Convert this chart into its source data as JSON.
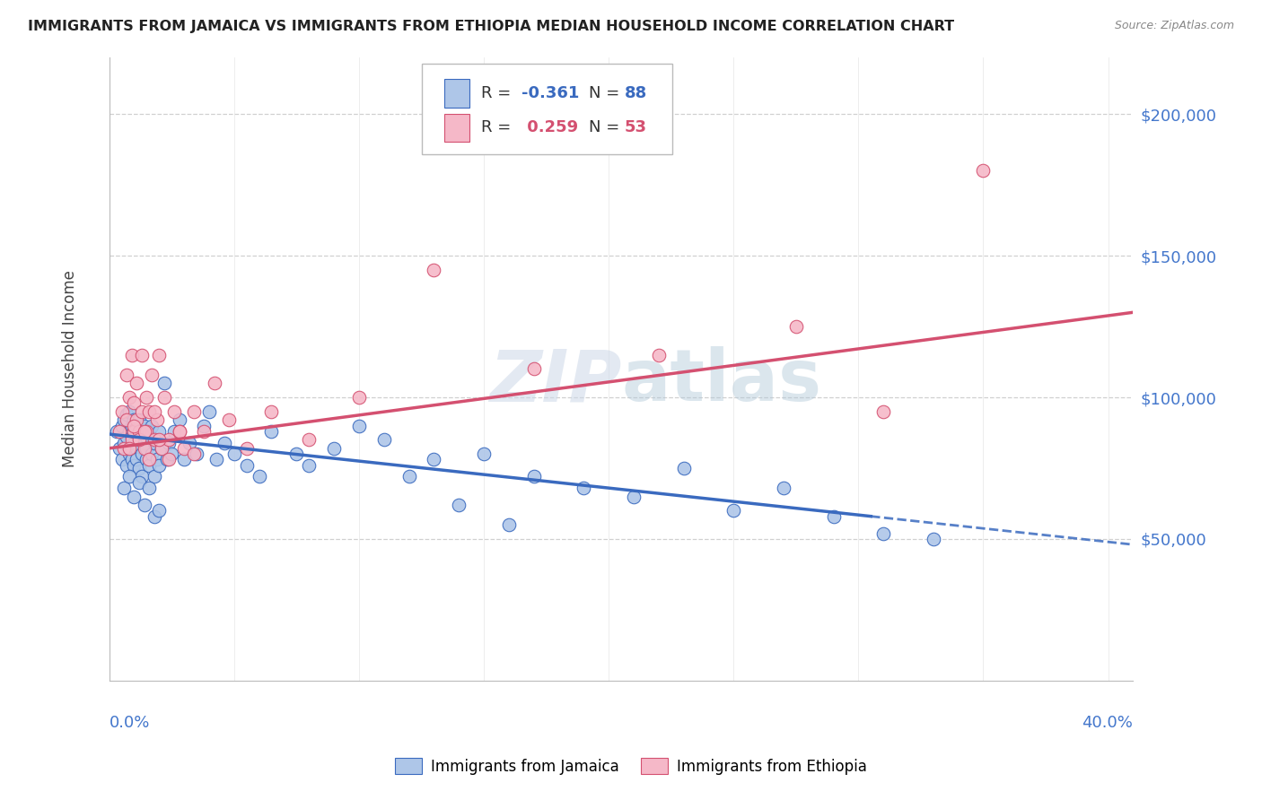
{
  "title": "IMMIGRANTS FROM JAMAICA VS IMMIGRANTS FROM ETHIOPIA MEDIAN HOUSEHOLD INCOME CORRELATION CHART",
  "source": "Source: ZipAtlas.com",
  "ylabel": "Median Household Income",
  "xlim": [
    0.0,
    0.41
  ],
  "ylim": [
    0,
    220000
  ],
  "watermark": "ZIPatlas",
  "jamaica_color": "#aec6e8",
  "ethiopia_color": "#f5b8c8",
  "jamaica_line_color": "#3a6abf",
  "ethiopia_line_color": "#d45070",
  "background_color": "#ffffff",
  "grid_color": "#d0d0d0",
  "title_color": "#222222",
  "axis_label_color": "#4477cc",
  "source_color": "#888888",
  "jamaica_x": [
    0.003,
    0.004,
    0.005,
    0.005,
    0.006,
    0.006,
    0.007,
    0.007,
    0.007,
    0.008,
    0.008,
    0.008,
    0.009,
    0.009,
    0.009,
    0.009,
    0.01,
    0.01,
    0.01,
    0.01,
    0.011,
    0.011,
    0.011,
    0.012,
    0.012,
    0.012,
    0.013,
    0.013,
    0.013,
    0.014,
    0.014,
    0.015,
    0.015,
    0.015,
    0.016,
    0.016,
    0.017,
    0.017,
    0.018,
    0.018,
    0.019,
    0.02,
    0.02,
    0.021,
    0.022,
    0.023,
    0.024,
    0.025,
    0.026,
    0.028,
    0.03,
    0.032,
    0.035,
    0.038,
    0.04,
    0.043,
    0.046,
    0.05,
    0.055,
    0.06,
    0.065,
    0.075,
    0.08,
    0.09,
    0.1,
    0.11,
    0.13,
    0.15,
    0.17,
    0.19,
    0.21,
    0.23,
    0.25,
    0.27,
    0.29,
    0.31,
    0.33,
    0.12,
    0.14,
    0.16,
    0.006,
    0.008,
    0.01,
    0.012,
    0.014,
    0.016,
    0.018,
    0.02
  ],
  "jamaica_y": [
    88000,
    82000,
    90000,
    78000,
    92000,
    84000,
    86000,
    94000,
    76000,
    88000,
    80000,
    95000,
    82000,
    90000,
    78000,
    86000,
    84000,
    92000,
    76000,
    88000,
    82000,
    78000,
    90000,
    85000,
    75000,
    92000,
    80000,
    88000,
    72000,
    84000,
    90000,
    78000,
    86000,
    82000,
    88000,
    76000,
    80000,
    90000,
    84000,
    72000,
    78000,
    88000,
    76000,
    82000,
    105000,
    78000,
    84000,
    80000,
    88000,
    92000,
    78000,
    84000,
    80000,
    90000,
    95000,
    78000,
    84000,
    80000,
    76000,
    72000,
    88000,
    80000,
    76000,
    82000,
    90000,
    85000,
    78000,
    80000,
    72000,
    68000,
    65000,
    75000,
    60000,
    68000,
    58000,
    52000,
    50000,
    72000,
    62000,
    55000,
    68000,
    72000,
    65000,
    70000,
    62000,
    68000,
    58000,
    60000
  ],
  "ethiopia_x": [
    0.004,
    0.005,
    0.006,
    0.007,
    0.007,
    0.008,
    0.009,
    0.009,
    0.01,
    0.01,
    0.011,
    0.011,
    0.012,
    0.013,
    0.013,
    0.014,
    0.015,
    0.015,
    0.016,
    0.017,
    0.018,
    0.019,
    0.02,
    0.021,
    0.022,
    0.024,
    0.026,
    0.028,
    0.03,
    0.034,
    0.038,
    0.042,
    0.048,
    0.055,
    0.065,
    0.08,
    0.1,
    0.13,
    0.17,
    0.22,
    0.008,
    0.01,
    0.012,
    0.014,
    0.016,
    0.018,
    0.02,
    0.024,
    0.028,
    0.034,
    0.275,
    0.31,
    0.35
  ],
  "ethiopia_y": [
    88000,
    95000,
    82000,
    108000,
    92000,
    100000,
    115000,
    85000,
    98000,
    88000,
    92000,
    105000,
    88000,
    95000,
    115000,
    82000,
    100000,
    88000,
    95000,
    108000,
    85000,
    92000,
    115000,
    82000,
    100000,
    85000,
    95000,
    88000,
    82000,
    95000,
    88000,
    105000,
    92000,
    82000,
    95000,
    85000,
    100000,
    145000,
    110000,
    115000,
    82000,
    90000,
    85000,
    88000,
    78000,
    95000,
    85000,
    78000,
    88000,
    80000,
    125000,
    95000,
    180000
  ]
}
